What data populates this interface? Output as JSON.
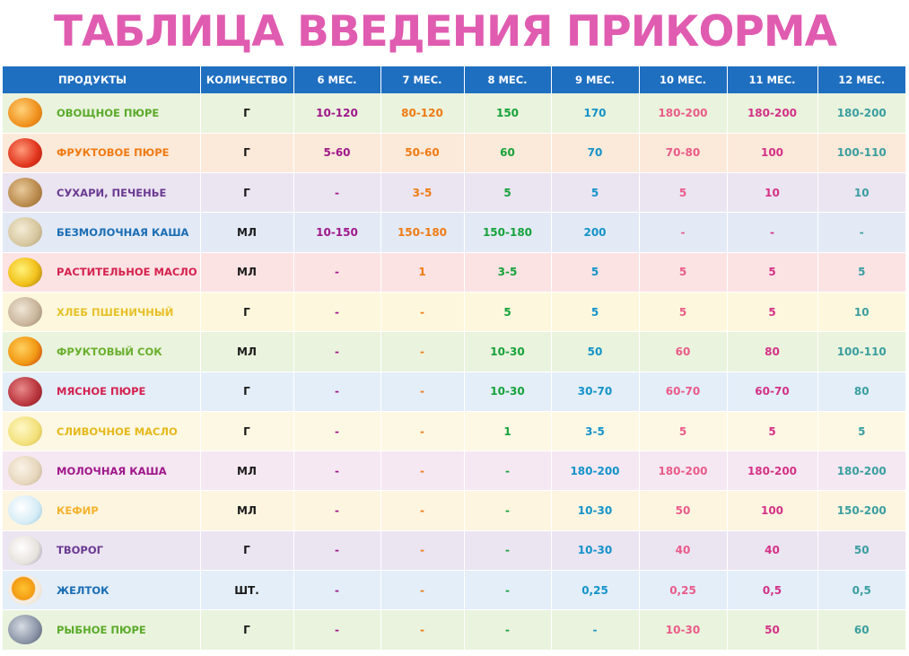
{
  "title": "ТАБЛИЦА ВВЕДЕНИЯ ПРИКОРМА",
  "headers": [
    "ПРОДУКТЫ",
    "КОЛИЧЕСТВО",
    "6 МЕС.",
    "7 МЕС.",
    "8 МЕС.",
    "9 МЕС.",
    "10 МЕС.",
    "11 МЕС.",
    "12 МЕС."
  ],
  "column_colors": [
    "#a0178b",
    "#f07b14",
    "#16a23a",
    "#1493c9",
    "#ea5b8a",
    "#d43187",
    "#3a9ea0"
  ],
  "rows": [
    {
      "name": "ОВОЩНОЕ ПЮРЕ",
      "unit": "Г",
      "values": [
        "10-120",
        "80-120",
        "150",
        "170",
        "180-200",
        "180-200",
        "180-200"
      ],
      "name_color": "#5aab2b",
      "bg": "#eaf3dd",
      "icon": "vegetable-puree-icon"
    },
    {
      "name": "ФРУКТОВОЕ ПЮРЕ",
      "unit": "Г",
      "values": [
        "5-60",
        "50-60",
        "60",
        "70",
        "70-80",
        "100",
        "100-110"
      ],
      "name_color": "#f07b14",
      "bg": "#fbe9d9",
      "icon": "fruit-puree-icon"
    },
    {
      "name": "СУХАРИ, ПЕЧЕНЬЕ",
      "unit": "Г",
      "values": [
        "-",
        "3-5",
        "5",
        "5",
        "5",
        "10",
        "10"
      ],
      "name_color": "#6a3a91",
      "bg": "#ebe4f1",
      "icon": "biscuits-icon"
    },
    {
      "name": "БЕЗМОЛОЧНАЯ КАША",
      "unit": "МЛ",
      "values": [
        "10-150",
        "150-180",
        "150-180",
        "200",
        "-",
        "-",
        "-"
      ],
      "name_color": "#1a6db4",
      "bg": "#e3eaf5",
      "icon": "porridge-icon"
    },
    {
      "name": "РАСТИТЕЛЬНОЕ МАСЛО",
      "unit": "МЛ",
      "values": [
        "-",
        "1",
        "3-5",
        "5",
        "5",
        "5",
        "5"
      ],
      "name_color": "#d4214f",
      "bg": "#fbe3e4",
      "icon": "sunflower-oil-icon"
    },
    {
      "name": "ХЛЕБ ПШЕНИЧНЫЙ",
      "unit": "Г",
      "values": [
        "-",
        "-",
        "5",
        "5",
        "5",
        "5",
        "10"
      ],
      "name_color": "#e8c02a",
      "bg": "#fdf8dd",
      "icon": "wheat-bread-icon"
    },
    {
      "name": "ФРУКТОВЫЙ СОК",
      "unit": "МЛ",
      "values": [
        "-",
        "-",
        "10-30",
        "50",
        "60",
        "80",
        "100-110"
      ],
      "name_color": "#6ab02e",
      "bg": "#eaf3dd",
      "icon": "fruit-juice-icon"
    },
    {
      "name": "МЯСНОЕ ПЮРЕ",
      "unit": "Г",
      "values": [
        "-",
        "-",
        "10-30",
        "30-70",
        "60-70",
        "60-70",
        "80"
      ],
      "name_color": "#d4214f",
      "bg": "#e3eef8",
      "icon": "meat-puree-icon"
    },
    {
      "name": "СЛИВОЧНОЕ МАСЛО",
      "unit": "Г",
      "values": [
        "-",
        "-",
        "1",
        "3-5",
        "5",
        "5",
        "5"
      ],
      "name_color": "#e6b81c",
      "bg": "#fdf8e4",
      "icon": "butter-icon"
    },
    {
      "name": "МОЛОЧНАЯ КАША",
      "unit": "МЛ",
      "values": [
        "-",
        "-",
        "-",
        "180-200",
        "180-200",
        "180-200",
        "180-200"
      ],
      "name_color": "#a0178b",
      "bg": "#f5e8f2",
      "icon": "milk-porridge-icon"
    },
    {
      "name": "КЕФИР",
      "unit": "МЛ",
      "values": [
        "-",
        "-",
        "-",
        "10-30",
        "50",
        "100",
        "150-200"
      ],
      "name_color": "#f5b330",
      "bg": "#fdf5e0",
      "icon": "kefir-icon"
    },
    {
      "name": "ТВОРОГ",
      "unit": "Г",
      "values": [
        "-",
        "-",
        "-",
        "10-30",
        "40",
        "40",
        "50"
      ],
      "name_color": "#6a3a91",
      "bg": "#ebe4f1",
      "icon": "cottage-cheese-icon"
    },
    {
      "name": "ЖЕЛТОК",
      "unit": "ШТ.",
      "values": [
        "-",
        "-",
        "-",
        "0,25",
        "0,25",
        "0,5",
        "0,5"
      ],
      "name_color": "#1a6db4",
      "bg": "#e3eef8",
      "icon": "yolk-icon"
    },
    {
      "name": "РЫБНОЕ ПЮРЕ",
      "unit": "Г",
      "values": [
        "-",
        "-",
        "-",
        "-",
        "10-30",
        "50",
        "60"
      ],
      "name_color": "#5aab2b",
      "bg": "#eaf3dd",
      "icon": "fish-puree-icon"
    }
  ]
}
